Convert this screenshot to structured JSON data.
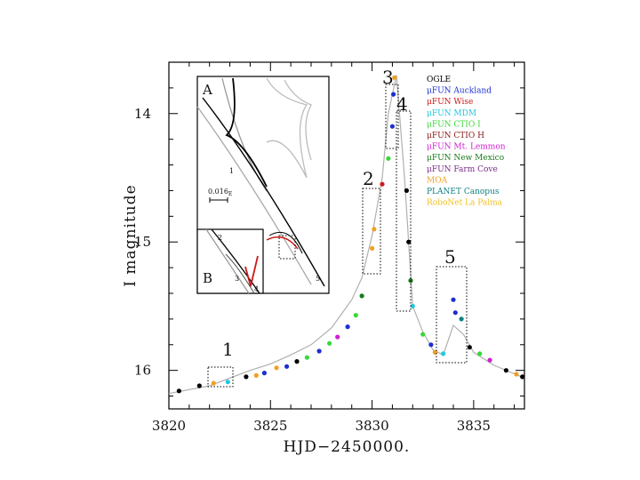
{
  "chart_data": {
    "type": "scatter",
    "xlabel": "HJD−2450000.",
    "ylabel": "I magnitude",
    "xlim": [
      3820,
      3837.5
    ],
    "ylim": [
      16.3,
      13.6
    ],
    "y_inverted": true,
    "x_ticks": [
      "3820",
      "3825",
      "3830",
      "3835"
    ],
    "y_ticks": [
      "14",
      "15",
      "16"
    ],
    "x_tick_values": [
      3820,
      3825,
      3830,
      3835
    ],
    "y_tick_values": [
      14,
      15,
      16
    ],
    "legend_position": "top-right",
    "series": [
      {
        "name": "OGLE",
        "color": "#000000"
      },
      {
        "name": "μFUN Auckland",
        "color": "#1d2fd0"
      },
      {
        "name": "μFUN Wise",
        "color": "#d01818"
      },
      {
        "name": "μFUN MDM",
        "color": "#22c8e0"
      },
      {
        "name": "μFUN CTIO I",
        "color": "#38d838"
      },
      {
        "name": "μFUN CTIO H",
        "color": "#8a1a1a"
      },
      {
        "name": "μFUN Mt. Lemmon",
        "color": "#d020d0"
      },
      {
        "name": "μFUN New Mexico",
        "color": "#1a7a1a"
      },
      {
        "name": "μFUN Farm Cove",
        "color": "#7a2a8a"
      },
      {
        "name": "MOA",
        "color": "#f0a020"
      },
      {
        "name": "PLANET Canopus",
        "color": "#108080"
      },
      {
        "name": "RoboNet La Palma",
        "color": "#f0c020"
      }
    ],
    "model_curve": [
      [
        3820,
        16.18
      ],
      [
        3822,
        16.12
      ],
      [
        3824,
        16.0
      ],
      [
        3825,
        15.95
      ],
      [
        3826,
        15.88
      ],
      [
        3827,
        15.8
      ],
      [
        3828,
        15.67
      ],
      [
        3829,
        15.45
      ],
      [
        3829.5,
        15.28
      ],
      [
        3830,
        14.95
      ],
      [
        3830.5,
        14.5
      ],
      [
        3830.8,
        14.0
      ],
      [
        3831.2,
        13.7
      ],
      [
        3831.6,
        14.5
      ],
      [
        3832,
        15.5
      ],
      [
        3832.5,
        15.7
      ],
      [
        3833,
        15.84
      ],
      [
        3833.5,
        15.88
      ],
      [
        3834,
        15.65
      ],
      [
        3834.5,
        15.72
      ],
      [
        3835,
        15.86
      ],
      [
        3836,
        15.96
      ],
      [
        3837.5,
        16.06
      ]
    ],
    "points": [
      {
        "s": 0,
        "x": 3820.5,
        "y": 16.16
      },
      {
        "s": 0,
        "x": 3821.5,
        "y": 16.12
      },
      {
        "s": 9,
        "x": 3822.2,
        "y": 16.1
      },
      {
        "s": 3,
        "x": 3822.9,
        "y": 16.09
      },
      {
        "s": 0,
        "x": 3823.8,
        "y": 16.05
      },
      {
        "s": 9,
        "x": 3824.3,
        "y": 16.04
      },
      {
        "s": 1,
        "x": 3824.7,
        "y": 16.02
      },
      {
        "s": 9,
        "x": 3825.3,
        "y": 15.98
      },
      {
        "s": 1,
        "x": 3825.8,
        "y": 15.97
      },
      {
        "s": 0,
        "x": 3826.3,
        "y": 15.93
      },
      {
        "s": 4,
        "x": 3826.8,
        "y": 15.9
      },
      {
        "s": 1,
        "x": 3827.4,
        "y": 15.85
      },
      {
        "s": 4,
        "x": 3827.9,
        "y": 15.79
      },
      {
        "s": 6,
        "x": 3828.3,
        "y": 15.74
      },
      {
        "s": 1,
        "x": 3828.8,
        "y": 15.66
      },
      {
        "s": 4,
        "x": 3829.2,
        "y": 15.57
      },
      {
        "s": 7,
        "x": 3829.5,
        "y": 15.42
      },
      {
        "s": 9,
        "x": 3830.0,
        "y": 15.05
      },
      {
        "s": 9,
        "x": 3830.1,
        "y": 14.9
      },
      {
        "s": 2,
        "x": 3830.5,
        "y": 14.55
      },
      {
        "s": 4,
        "x": 3830.8,
        "y": 14.35
      },
      {
        "s": 1,
        "x": 3831.0,
        "y": 14.1
      },
      {
        "s": 1,
        "x": 3831.05,
        "y": 13.85
      },
      {
        "s": 9,
        "x": 3831.1,
        "y": 13.72
      },
      {
        "s": 0,
        "x": 3831.7,
        "y": 14.6
      },
      {
        "s": 0,
        "x": 3831.8,
        "y": 15.0
      },
      {
        "s": 7,
        "x": 3831.9,
        "y": 15.3
      },
      {
        "s": 3,
        "x": 3832.0,
        "y": 15.5
      },
      {
        "s": 4,
        "x": 3832.5,
        "y": 15.72
      },
      {
        "s": 1,
        "x": 3832.9,
        "y": 15.8
      },
      {
        "s": 9,
        "x": 3833.1,
        "y": 15.86
      },
      {
        "s": 3,
        "x": 3833.5,
        "y": 15.87
      },
      {
        "s": 1,
        "x": 3834.0,
        "y": 15.45
      },
      {
        "s": 1,
        "x": 3834.1,
        "y": 15.55
      },
      {
        "s": 10,
        "x": 3834.4,
        "y": 15.6
      },
      {
        "s": 0,
        "x": 3834.8,
        "y": 15.82
      },
      {
        "s": 4,
        "x": 3835.3,
        "y": 15.87
      },
      {
        "s": 6,
        "x": 3835.8,
        "y": 15.92
      },
      {
        "s": 0,
        "x": 3836.6,
        "y": 16.0
      },
      {
        "s": 9,
        "x": 3837.1,
        "y": 16.03
      },
      {
        "s": 0,
        "x": 3837.4,
        "y": 16.05
      }
    ],
    "annotations": [
      "1",
      "2",
      "3",
      "4",
      "5"
    ],
    "inset_a": {
      "label": "A",
      "scale": "0.016",
      "scale_sub": "E",
      "marks": [
        "1",
        "5"
      ]
    },
    "inset_b": {
      "label": "B",
      "marks": [
        "2",
        "3",
        "4"
      ]
    }
  }
}
